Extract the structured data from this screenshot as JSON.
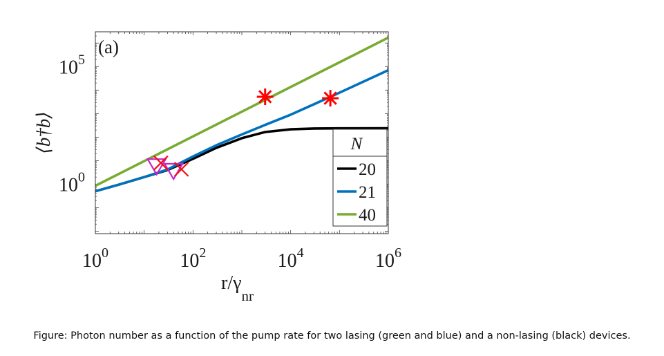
{
  "caption": "Figure: Photon number as a function of the pump rate for two lasing (green and blue) and a non-lasing (black) devices.",
  "chart_data": {
    "type": "line",
    "panel_label": "(a)",
    "xlabel": {
      "main": "r/γ",
      "sub": "nr"
    },
    "ylabel": "⟨b†b⟩",
    "xscale": "log",
    "yscale": "log",
    "xlim": [
      1,
      1000000
    ],
    "ylim": [
      0.0079,
      3000000
    ],
    "x_ticks": [
      {
        "value": 1,
        "base": "10",
        "exp": "0"
      },
      {
        "value": 100,
        "base": "10",
        "exp": "2"
      },
      {
        "value": 10000,
        "base": "10",
        "exp": "4"
      },
      {
        "value": 1000000,
        "base": "10",
        "exp": "6"
      }
    ],
    "y_ticks": [
      {
        "value": 1,
        "base": "10",
        "exp": "0"
      },
      {
        "value": 100000,
        "base": "10",
        "exp": "5"
      }
    ],
    "legend": {
      "title": "N",
      "position": "bottom-right"
    },
    "series": [
      {
        "name": "20",
        "color": "#000000",
        "points": [
          [
            1,
            0.5
          ],
          [
            3,
            0.95
          ],
          [
            10,
            2.0
          ],
          [
            30,
            4.0
          ],
          [
            100,
            12
          ],
          [
            300,
            35
          ],
          [
            1000,
            90
          ],
          [
            3000,
            165
          ],
          [
            10000,
            215
          ],
          [
            30000,
            232
          ],
          [
            100000,
            236
          ],
          [
            1000000,
            237
          ]
        ]
      },
      {
        "name": "21",
        "color": "#0072bd",
        "points": [
          [
            1,
            0.5
          ],
          [
            3,
            0.95
          ],
          [
            10,
            2.0
          ],
          [
            30,
            4.2
          ],
          [
            100,
            15
          ],
          [
            300,
            45
          ],
          [
            1000,
            130
          ],
          [
            3000,
            330
          ],
          [
            10000,
            900
          ],
          [
            30000,
            2500
          ],
          [
            70000,
            5500
          ],
          [
            200000,
            15000
          ],
          [
            1000000,
            70000
          ]
        ]
      },
      {
        "name": "40",
        "color": "#77ac30",
        "points": [
          [
            1,
            0.85
          ],
          [
            1000000,
            1700000
          ]
        ]
      }
    ],
    "markers": [
      {
        "type": "triangle-down",
        "color": "#cc22cc",
        "x": 18,
        "y": 6
      },
      {
        "type": "triangle-down",
        "color": "#cc22cc",
        "x": 40,
        "y": 3.8
      },
      {
        "type": "x",
        "color": "#ee1111",
        "x": 22,
        "y": 8
      },
      {
        "type": "x",
        "color": "#ee1111",
        "x": 58,
        "y": 4.3
      },
      {
        "type": "asterisk",
        "color": "#ff0000",
        "x": 3000,
        "y": 5200
      },
      {
        "type": "asterisk",
        "color": "#ff0000",
        "x": 65000,
        "y": 4500
      }
    ]
  }
}
